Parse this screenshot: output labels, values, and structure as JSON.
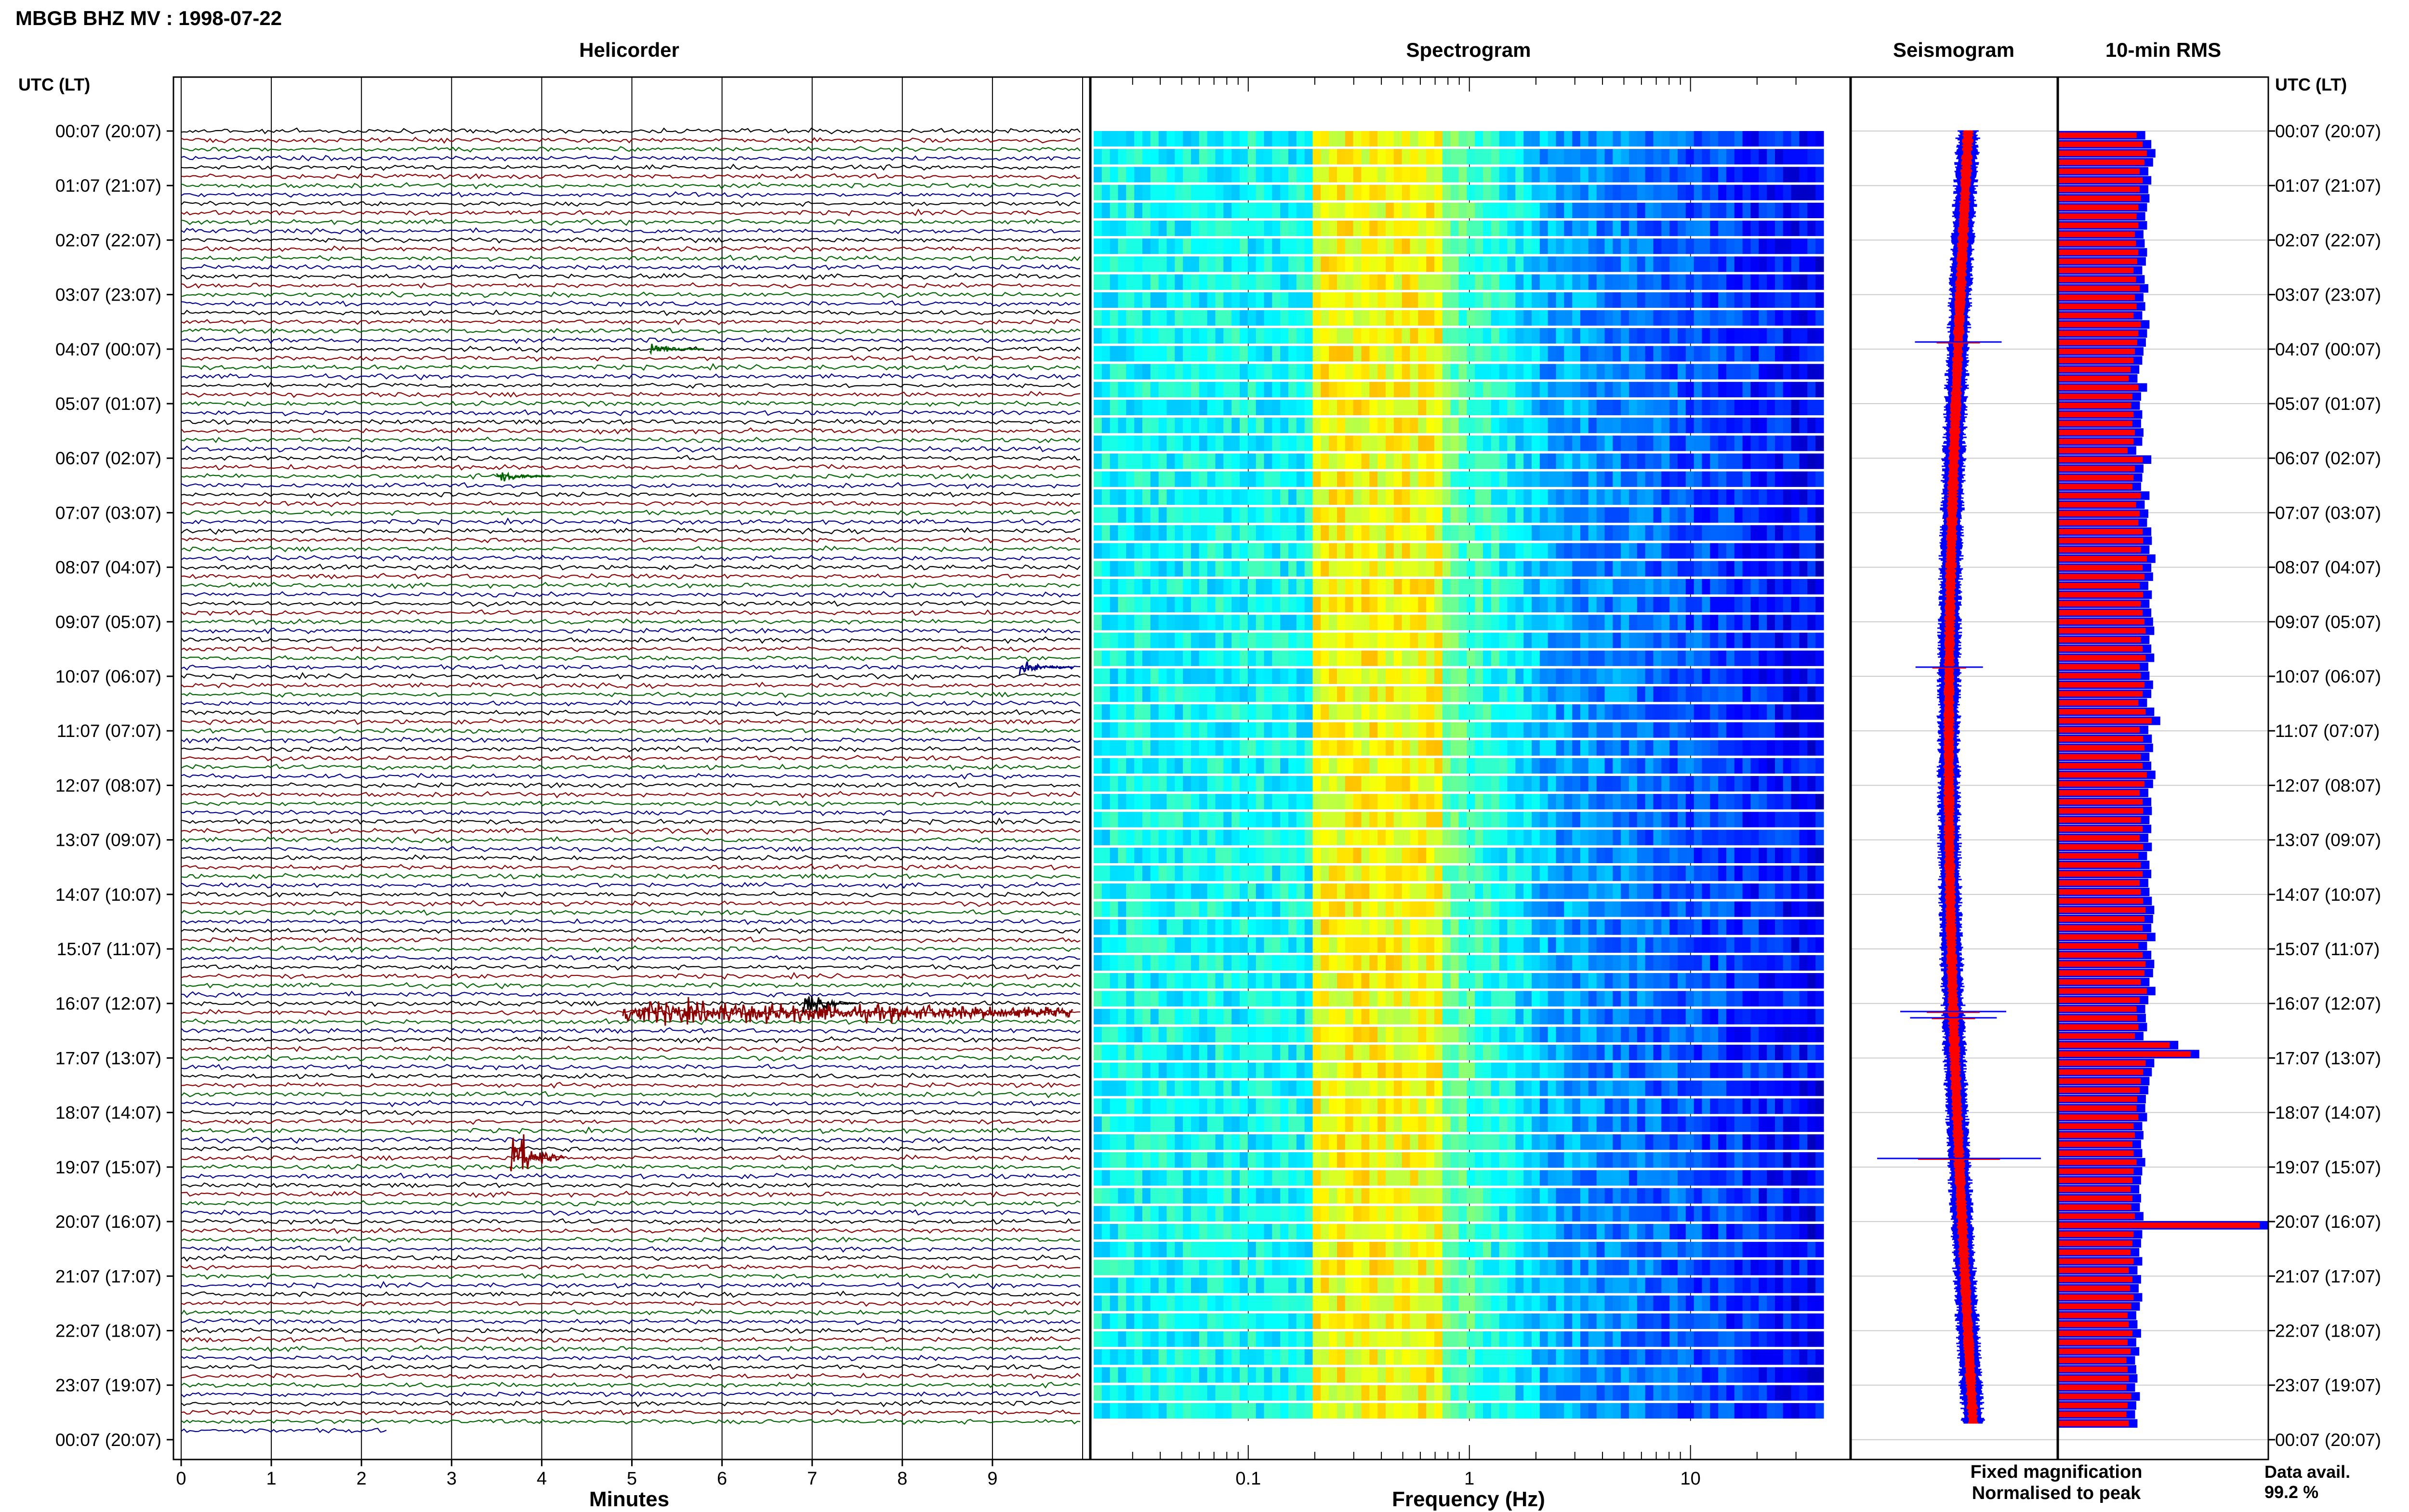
{
  "header": {
    "station_title": "MBGB BHZ MV : 1998-07-22"
  },
  "panels": {
    "helicorder_title": "Helicorder",
    "spectrogram_title": "Spectrogram",
    "seismogram_title": "Seismogram",
    "rms_title": "10-min RMS"
  },
  "axes": {
    "time_axis_label": "UTC (LT)",
    "helicorder_xlabel": "Minutes",
    "spectrogram_xlabel": "Frequency (Hz)"
  },
  "legend": {
    "fixed_label": "Fixed magnification",
    "fixed_color": "#0000ff",
    "normalised_label": "Normalised to peak",
    "normalised_color": "#ff0000"
  },
  "availability": {
    "label": "Data avail.",
    "value": "99.2 %"
  },
  "colors": {
    "trace_cycle": [
      "#000000",
      "#8b0000",
      "#006400",
      "#00008b"
    ],
    "rms_fill": "#ff0000",
    "rms_edge": "#0000ff"
  },
  "chart_data": {
    "type": "line",
    "title": "MBGB BHZ MV : 1998-07-22",
    "time_ticks": [
      "00:07 (20:07)",
      "01:07 (21:07)",
      "02:07 (22:07)",
      "03:07 (23:07)",
      "04:07 (00:07)",
      "05:07 (01:07)",
      "06:07 (02:07)",
      "07:07 (03:07)",
      "08:07 (04:07)",
      "09:07 (05:07)",
      "10:07 (06:07)",
      "11:07 (07:07)",
      "12:07 (08:07)",
      "13:07 (09:07)",
      "14:07 (10:07)",
      "15:07 (11:07)",
      "16:07 (12:07)",
      "17:07 (13:07)",
      "18:07 (14:07)",
      "19:07 (15:07)",
      "20:07 (16:07)",
      "21:07 (17:07)",
      "22:07 (18:07)",
      "23:07 (19:07)",
      "00:07 (20:07)"
    ],
    "helicorder": {
      "xlabel": "Minutes",
      "xlim": [
        0,
        10
      ],
      "minute_ticks": [
        "0",
        "1",
        "2",
        "3",
        "4",
        "5",
        "6",
        "7",
        "8",
        "9"
      ],
      "rows": 144,
      "events": [
        {
          "time_utc": "04:07",
          "minute": 5.2,
          "amplitude": 1.6,
          "trace": 2
        },
        {
          "time_utc": "06:27",
          "minute": 3.5,
          "amplitude": 1.6,
          "trace": 2
        },
        {
          "time_utc": "09:57",
          "minute": 9.3,
          "amplitude": 2.0,
          "trace": 3
        },
        {
          "time_utc": "16:17",
          "minute": 4.9,
          "amplitude": 2.8,
          "trace": 1,
          "duration_min": 5
        },
        {
          "time_utc": "16:07",
          "minute": 6.9,
          "amplitude": 3.0,
          "trace": 0
        },
        {
          "time_utc": "18:57",
          "minute": 3.65,
          "amplitude": 9.0,
          "trace": 1
        }
      ]
    },
    "spectrogram": {
      "xlabel": "Frequency (Hz)",
      "x_scale": "log",
      "xlim": [
        0.02,
        40
      ],
      "tick_labels": [
        "0.1",
        "1",
        "10"
      ],
      "colormap": "jet"
    },
    "seismogram": {
      "series": [
        {
          "name": "Fixed magnification",
          "color": "#0000ff"
        },
        {
          "name": "Normalised to peak",
          "color": "#ff0000"
        }
      ]
    },
    "rms_10min": {
      "values": [
        1.45,
        1.55,
        1.62,
        1.58,
        1.5,
        1.55,
        1.5,
        1.52,
        1.48,
        1.45,
        1.48,
        1.42,
        1.44,
        1.48,
        1.46,
        1.4,
        1.44,
        1.5,
        1.42,
        1.45,
        1.4,
        1.52,
        1.48,
        1.46,
        1.42,
        1.4,
        1.35,
        1.32,
        1.48,
        1.38,
        1.36,
        1.4,
        1.38,
        1.42,
        1.4,
        1.3,
        1.55,
        1.42,
        1.4,
        1.38,
        1.52,
        1.44,
        1.5,
        1.48,
        1.55,
        1.56,
        1.52,
        1.62,
        1.55,
        1.58,
        1.5,
        1.56,
        1.52,
        1.55,
        1.58,
        1.6,
        1.52,
        1.55,
        1.6,
        1.5,
        1.52,
        1.58,
        1.55,
        1.48,
        1.6,
        1.7,
        1.5,
        1.56,
        1.58,
        1.52,
        1.55,
        1.62,
        1.58,
        1.5,
        1.55,
        1.56,
        1.52,
        1.55,
        1.5,
        1.56,
        1.48,
        1.52,
        1.55,
        1.5,
        1.52,
        1.56,
        1.6,
        1.58,
        1.55,
        1.62,
        1.48,
        1.55,
        1.6,
        1.58,
        1.52,
        1.62,
        1.5,
        1.45,
        1.46,
        1.48,
        1.42,
        2.0,
        2.35,
        1.6,
        1.56,
        1.52,
        1.5,
        1.46,
        1.45,
        1.48,
        1.4,
        1.42,
        1.38,
        1.4,
        1.45,
        1.4,
        1.38,
        1.35,
        1.38,
        1.36,
        1.42,
        3.5,
        1.4,
        1.38,
        1.35,
        1.4,
        1.32,
        1.38,
        1.34,
        1.4,
        1.36,
        1.3,
        1.32,
        1.38,
        1.3,
        1.35,
        1.28,
        1.3,
        1.32,
        1.28,
        1.36,
        1.3,
        1.28,
        1.32
      ]
    }
  }
}
